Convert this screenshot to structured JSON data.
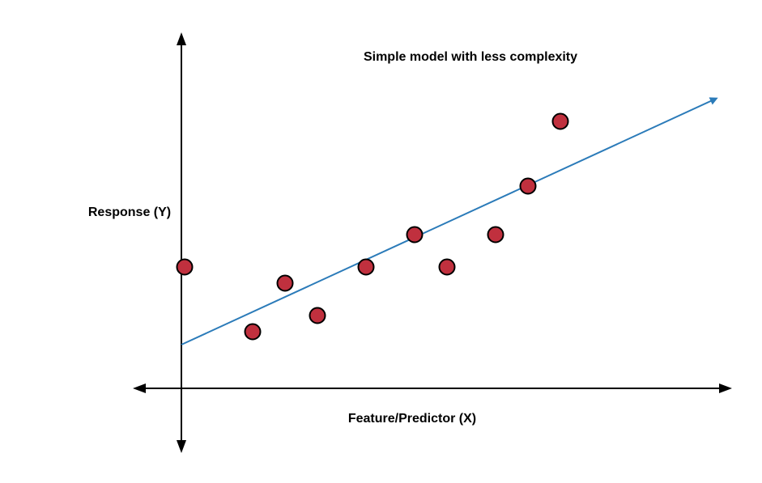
{
  "chart_data": {
    "type": "scatter",
    "title": "Simple model with less complexity",
    "xlabel": "Feature/Predictor (X)",
    "ylabel": "Response (Y)",
    "grid": false,
    "points": [
      {
        "x": 0.1,
        "y": 3.75
      },
      {
        "x": 2.2,
        "y": 1.75
      },
      {
        "x": 3.2,
        "y": 3.25
      },
      {
        "x": 4.2,
        "y": 2.25
      },
      {
        "x": 5.7,
        "y": 3.75
      },
      {
        "x": 7.2,
        "y": 4.75
      },
      {
        "x": 8.2,
        "y": 3.75
      },
      {
        "x": 9.7,
        "y": 4.75
      },
      {
        "x": 10.7,
        "y": 6.25
      },
      {
        "x": 11.7,
        "y": 8.25
      }
    ],
    "fit_line": {
      "x": [
        0,
        16.5
      ],
      "y": [
        1.35,
        8.95
      ]
    },
    "colors": {
      "point_fill": "#c0303e",
      "point_stroke": "#000000",
      "fit_line": "#2b7bb9",
      "axis": "#000000"
    }
  }
}
